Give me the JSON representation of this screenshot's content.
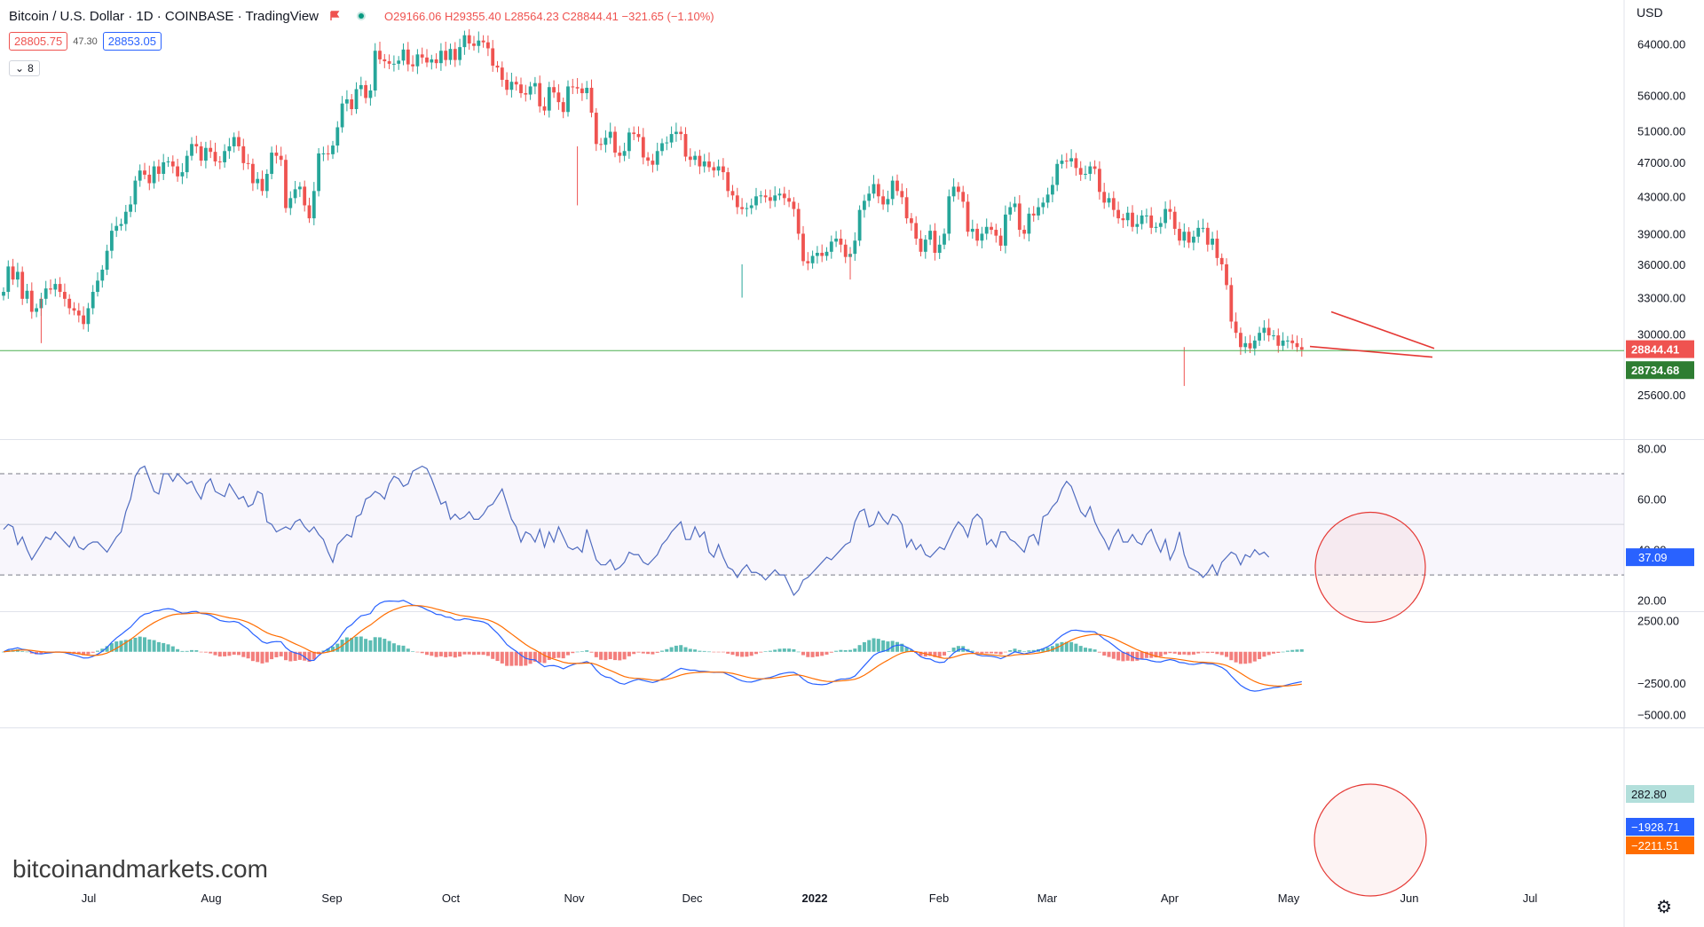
{
  "header": {
    "symbol": "Bitcoin / U.S. Dollar · 1D · COINBASE · TradingView",
    "open": "O29166.06",
    "high": "H29355.40",
    "low": "L28564.23",
    "close": "C28844.41",
    "change": "−321.65 (−1.10%)",
    "bid": "28805.75",
    "spread": "47.30",
    "ask": "28853.05",
    "indicators_toggle": "8",
    "currency": "USD"
  },
  "watermark": "bitcoinandmarkets.com",
  "colors": {
    "up": "#26a69a",
    "down": "#ef5350",
    "rsi_line": "#4f6bbf",
    "macd_line": "#2962ff",
    "signal_line": "#ff6d00",
    "hist_up": "#26a69a",
    "hist_down": "#ef5350",
    "hline": "#4caf50",
    "annotation": "#e53935"
  },
  "chart_data": [
    {
      "type": "candlestick",
      "title": "Bitcoin / U.S. Dollar",
      "scale": "log",
      "y_ticks": [
        "64000.00",
        "56000.00",
        "51000.00",
        "47000.00",
        "43000.00",
        "39000.00",
        "36000.00",
        "33000.00",
        "30000.00",
        "25600.00"
      ],
      "x_ticks": [
        "Jul",
        "Aug",
        "Sep",
        "Oct",
        "Nov",
        "Dec",
        "2022",
        "Feb",
        "Mar",
        "Apr",
        "May",
        "Jun",
        "Jul"
      ],
      "last_price": "28844.41",
      "last_price_value": 28844.41,
      "horizontal_line": "28734.68",
      "horizontal_line_value": 28734.68,
      "ylim": [
        23500,
        70500
      ],
      "closes": [
        33500,
        35800,
        34600,
        35300,
        32900,
        33600,
        31800,
        32100,
        32900,
        33800,
        33700,
        34200,
        33500,
        32900,
        32100,
        31900,
        31500,
        30800,
        32100,
        33500,
        34500,
        35500,
        37300,
        39300,
        39800,
        40000,
        41300,
        42100,
        44800,
        46000,
        45500,
        44500,
        46500,
        45600,
        47000,
        47100,
        46500,
        45300,
        45800,
        47800,
        49300,
        49000,
        47200,
        48800,
        48300,
        47100,
        47000,
        48400,
        49000,
        50200,
        49000,
        46900,
        46800,
        44500,
        45000,
        43600,
        45600,
        48200,
        47800,
        47300,
        41700,
        42800,
        43800,
        44100,
        42000,
        40600,
        43600,
        48100,
        48100,
        48000,
        49100,
        51500,
        54800,
        55400,
        54000,
        56900,
        57500,
        55600,
        56700,
        62900,
        61500,
        61200,
        60800,
        60800,
        61300,
        63100,
        60700,
        60400,
        62300,
        61800,
        61000,
        61500,
        60900,
        62900,
        61400,
        63200,
        61400,
        63500,
        65500,
        64100,
        63700,
        64600,
        64300,
        63300,
        60500,
        60200,
        58300,
        56800,
        58000,
        57600,
        56300,
        56100,
        57300,
        57800,
        54400,
        53800,
        57200,
        56400,
        55000,
        53600,
        57300,
        57200,
        57000,
        56300,
        57100,
        53500,
        49300,
        49200,
        50100,
        50900,
        48200,
        47800,
        48400,
        50800,
        50600,
        50200,
        47600,
        47200,
        46700,
        48400,
        49400,
        49500,
        50600,
        50900,
        50600,
        47700,
        47300,
        47800,
        46500,
        47100,
        46400,
        46000,
        46500,
        45800,
        43600,
        43100,
        41800,
        41600,
        41700,
        42000,
        43000,
        43100,
        42900,
        42500,
        43100,
        43300,
        42800,
        42400,
        41600,
        39000,
        36300,
        36100,
        36800,
        37100,
        36800,
        37200,
        38200,
        38500,
        37900,
        36700,
        37000,
        38300,
        41500,
        42500,
        43300,
        44400,
        43000,
        42100,
        42700,
        44800,
        43600,
        42900,
        40600,
        40100,
        38500,
        37200,
        38400,
        39300,
        37100,
        37900,
        39000,
        43000,
        44100,
        43500,
        42400,
        39200,
        39500,
        38300,
        39000,
        39700,
        39400,
        38800,
        37800,
        41000,
        41800,
        42200,
        39400,
        39000,
        41100,
        40900,
        41800,
        42300,
        43200,
        44300,
        46800,
        47200,
        47100,
        47500,
        46300,
        45500,
        45600,
        46500,
        46200,
        43500,
        42300,
        42800,
        41500,
        40600,
        40400,
        41200,
        39700,
        40000,
        40900,
        40900,
        39600,
        39700,
        40100,
        41600,
        41300,
        39500,
        38300,
        39200,
        38100,
        38700,
        39600,
        39600,
        37900,
        38500,
        36600,
        36000,
        34100,
        31000,
        30100,
        29000,
        29300,
        28900,
        29500,
        30100,
        30500,
        29900,
        29900,
        29100,
        29500,
        29500,
        29300,
        29000,
        28800
      ]
    },
    {
      "type": "line",
      "title": "RSI",
      "series_name": "RSI",
      "y_ticks": [
        "80.00",
        "60.00",
        "40.00",
        "20.00"
      ],
      "ylim": [
        16,
        83
      ],
      "bands": [
        70,
        50,
        30
      ],
      "last_value": "37.09",
      "values": [
        48,
        50,
        49,
        42,
        45,
        40,
        36,
        39,
        42,
        45,
        44,
        47,
        45,
        43,
        41,
        45,
        41,
        40,
        42,
        43,
        43,
        41,
        39,
        42,
        45,
        47,
        55,
        60,
        69,
        72,
        73,
        68,
        63,
        62,
        70,
        70,
        67,
        70,
        68,
        66,
        67,
        63,
        60,
        66,
        68,
        63,
        62,
        61,
        66,
        63,
        60,
        61,
        57,
        58,
        63,
        62,
        51,
        50,
        47,
        48,
        49,
        48,
        51,
        52,
        49,
        47,
        49,
        46,
        44,
        39,
        35,
        42,
        44,
        46,
        45,
        53,
        54,
        60,
        61,
        63,
        62,
        60,
        66,
        69,
        68,
        65,
        66,
        71,
        72,
        73,
        72,
        68,
        63,
        58,
        59,
        52,
        54,
        52,
        53,
        55,
        52,
        52,
        54,
        57,
        58,
        61,
        64,
        58,
        52,
        49,
        43,
        47,
        46,
        43,
        48,
        41,
        47,
        43,
        49,
        45,
        41,
        40,
        41,
        39,
        48,
        42,
        36,
        34,
        34,
        36,
        32,
        33,
        35,
        39,
        38,
        38,
        35,
        34,
        36,
        38,
        42,
        44,
        47,
        49,
        51,
        44,
        44,
        49,
        45,
        47,
        39,
        37,
        42,
        37,
        33,
        32,
        29,
        32,
        34,
        31,
        31,
        30,
        28,
        30,
        32,
        30,
        30,
        26,
        22,
        24,
        28,
        29,
        31,
        33,
        35,
        37,
        36,
        38,
        40,
        42,
        43,
        51,
        55,
        56,
        49,
        50,
        55,
        52,
        50,
        54,
        53,
        50,
        41,
        44,
        40,
        42,
        38,
        37,
        39,
        41,
        40,
        44,
        48,
        51,
        49,
        45,
        52,
        54,
        52,
        42,
        44,
        41,
        47,
        47,
        44,
        43,
        41,
        39,
        45,
        46,
        42,
        53,
        54,
        57,
        59,
        64,
        67,
        65,
        60,
        55,
        53,
        57,
        51,
        47,
        44,
        40,
        45,
        48,
        43,
        43,
        46,
        43,
        42,
        46,
        48,
        43,
        39,
        44,
        36,
        40,
        47,
        38,
        33,
        32,
        31,
        29,
        31,
        34,
        30,
        35,
        37,
        39,
        38,
        34,
        38,
        37,
        40,
        38,
        39,
        37
      ]
    },
    {
      "type": "line",
      "title": "MACD",
      "series": [
        {
          "name": "MACD",
          "last_value": "−1928.71"
        },
        {
          "name": "Signal",
          "last_value": "−2211.51"
        }
      ],
      "histogram_last_value": "282.80",
      "y_ticks": [
        "2500.00",
        "−2500.00",
        "−5000.00"
      ],
      "ylim": [
        -5900,
        3100
      ]
    }
  ]
}
